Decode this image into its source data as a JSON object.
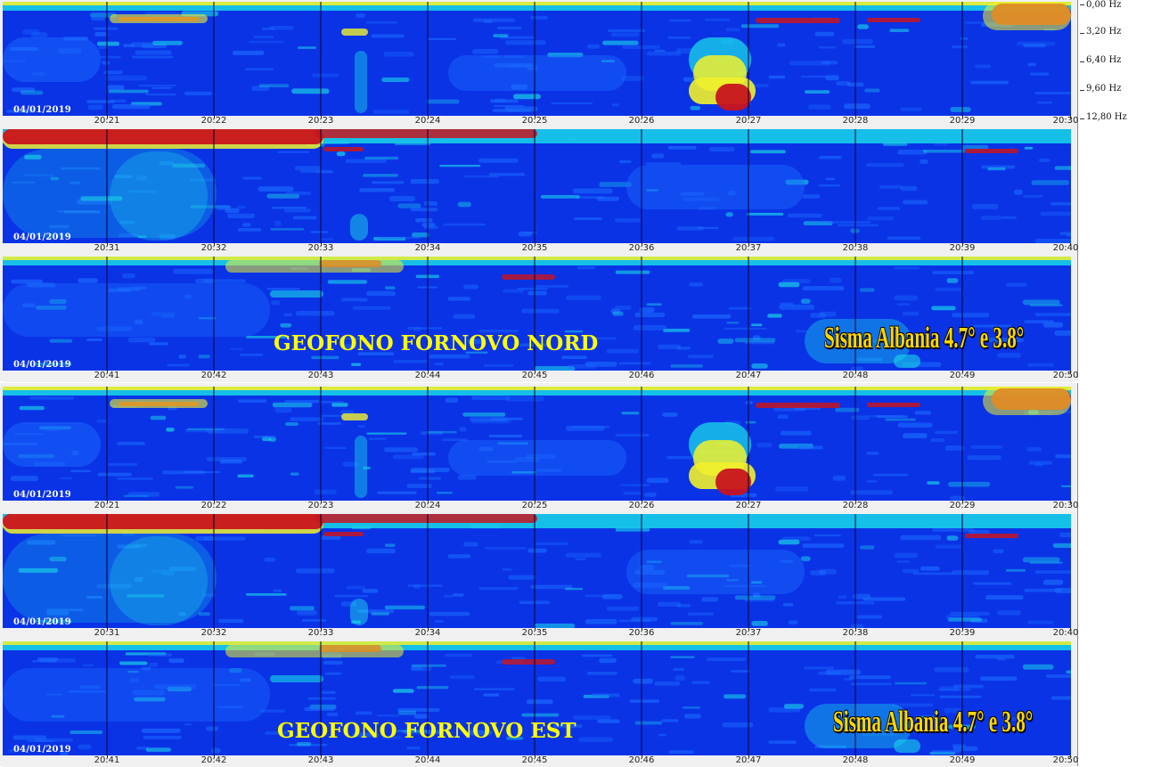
{
  "colors": {
    "background": "#0a33e6",
    "low": "#1a6bff",
    "mid": "#19d8e8",
    "high": "#f1f12a",
    "peak": "#c8141e"
  },
  "frequency_axis": {
    "labels": [
      "0,00 Hz",
      "3,20 Hz",
      "6,40 Hz",
      "9,60 Hz",
      "12,80 Hz"
    ]
  },
  "chart_data": [
    {
      "type": "heatmap",
      "title": "GEOFONO FORNOVO NORD",
      "annotation": "Sisma Albania 4.7° e 3.8°",
      "date": "04/01/2019",
      "ylabel": "",
      "ylim": [
        0,
        12.8
      ],
      "strips": [
        {
          "ticks": [
            "20:21",
            "20:22",
            "20:23",
            "20:24",
            "20:25",
            "20:26",
            "20:27",
            "20:28",
            "20:29",
            "20:30"
          ]
        },
        {
          "ticks": [
            "20:31",
            "20:32",
            "20:33",
            "20:34",
            "20:35",
            "20:36",
            "20:37",
            "20:38",
            "20:39",
            "20:40"
          ]
        },
        {
          "ticks": [
            "20:41",
            "20:42",
            "20:43",
            "20:44",
            "20:45",
            "20:46",
            "20:47",
            "20:48",
            "20:49",
            "20:50"
          ]
        }
      ]
    },
    {
      "type": "heatmap",
      "title": "GEOFONO FORNOVO EST",
      "annotation": "Sisma Albania 4.7° e 3.8°",
      "date": "04/01/2019",
      "ylabel": "",
      "ylim": [
        0,
        12.8
      ],
      "strips": [
        {
          "ticks": [
            "20:21",
            "20:22",
            "20:23",
            "20:24",
            "20:25",
            "20:26",
            "20:27",
            "20:28",
            "20:29",
            "20:30"
          ]
        },
        {
          "ticks": [
            "20:31",
            "20:32",
            "20:33",
            "20:34",
            "20:35",
            "20:36",
            "20:37",
            "20:38",
            "20:39",
            "20:40"
          ]
        },
        {
          "ticks": [
            "20:41",
            "20:42",
            "20:43",
            "20:44",
            "20:45",
            "20:46",
            "20:47",
            "20:48",
            "20:49",
            "20:50"
          ]
        }
      ]
    }
  ]
}
